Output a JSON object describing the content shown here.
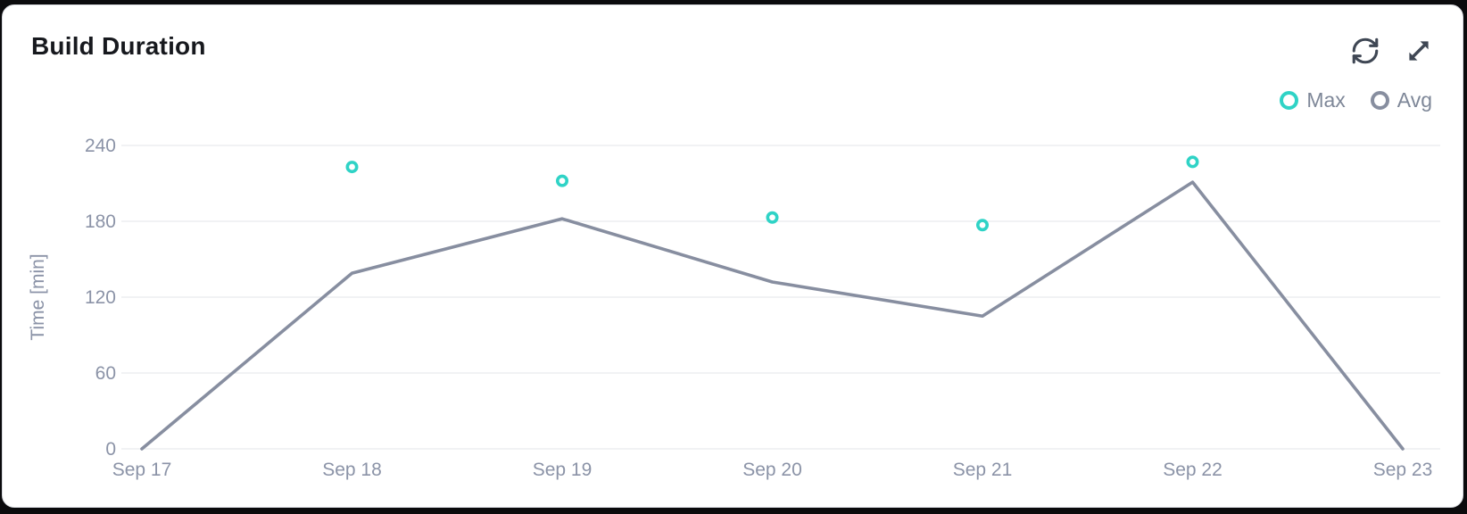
{
  "card": {
    "title": "Build Duration"
  },
  "toolbar": {
    "refresh_icon": "refresh",
    "expand_icon": "expand"
  },
  "legend": {
    "items": [
      {
        "label": "Max",
        "color": "#2fd3c6"
      },
      {
        "label": "Avg",
        "color": "#878e9f"
      }
    ]
  },
  "colors": {
    "max_series": "#2fd3c6",
    "avg_series": "#878ea0",
    "axis_text": "#8b93a7",
    "gridline": "#e3e5e9",
    "title_text": "#17191e",
    "icon": "#3f4754",
    "card_background": "#ffffff"
  },
  "chart_data": {
    "type": "line",
    "title": "Build Duration",
    "xlabel": "",
    "ylabel": "Time [min]",
    "ylim": [
      0,
      255
    ],
    "yticks": [
      0,
      60,
      120,
      180,
      240
    ],
    "grid": true,
    "legend_position": "top-right",
    "categories": [
      "Sep 17",
      "Sep 18",
      "Sep 19",
      "Sep 20",
      "Sep 21",
      "Sep 22",
      "Sep 23"
    ],
    "series": [
      {
        "name": "Max",
        "type": "scatter",
        "color": "#2fd3c6",
        "values": [
          null,
          223,
          212,
          183,
          177,
          227,
          null
        ]
      },
      {
        "name": "Avg",
        "type": "line",
        "color": "#878ea0",
        "values": [
          0,
          139,
          182,
          132,
          105,
          211,
          0
        ]
      }
    ]
  }
}
